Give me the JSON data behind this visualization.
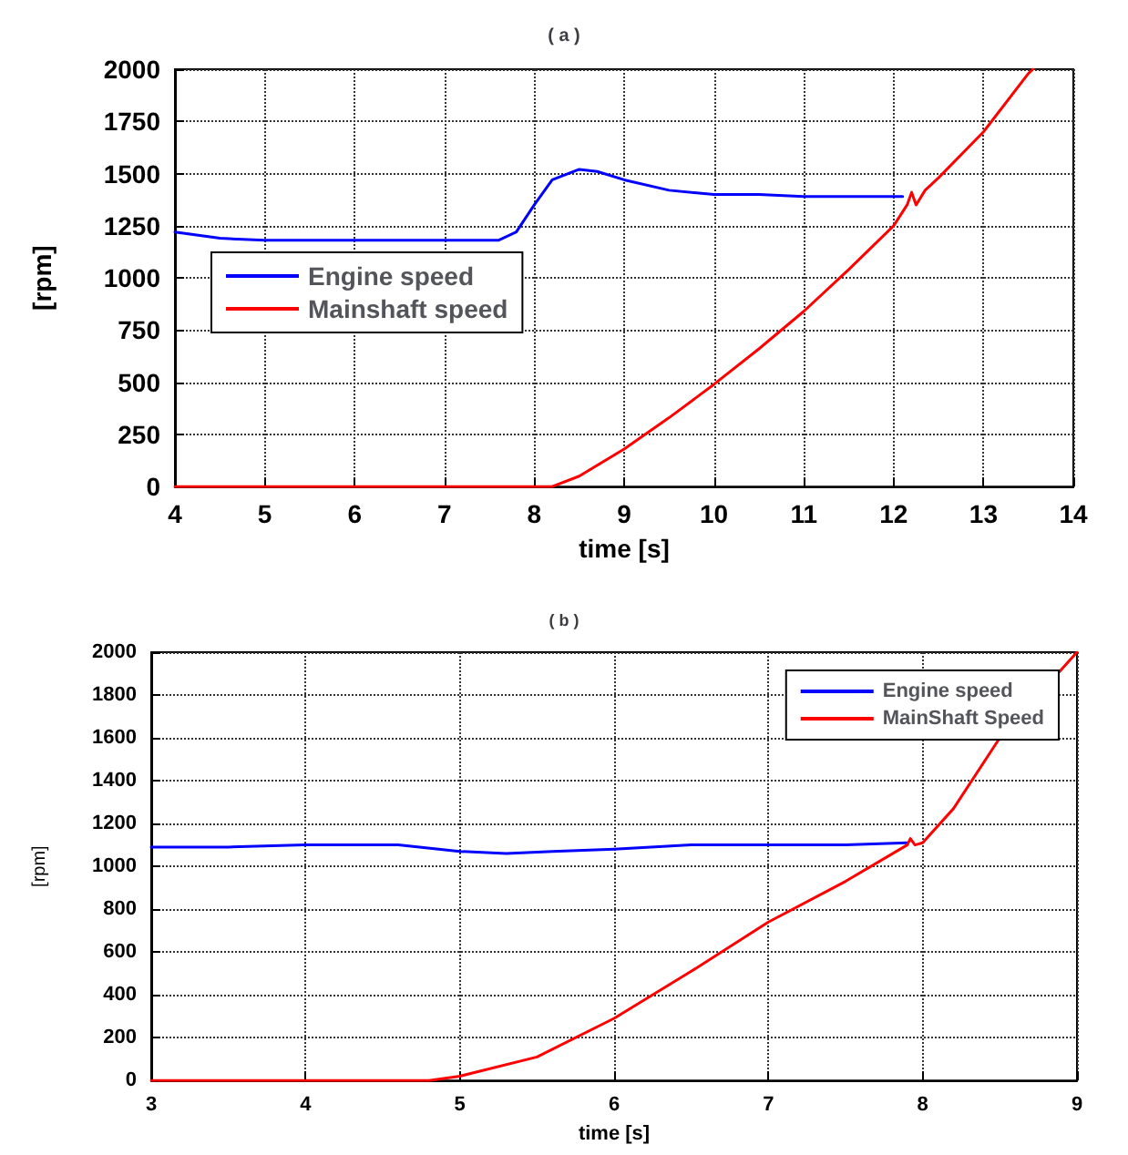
{
  "chart_data": [
    {
      "type": "line",
      "title": "( a )",
      "xlabel": "time [s]",
      "ylabel": "[rpm]",
      "xlim": [
        4,
        14
      ],
      "xticks": [
        4,
        5,
        6,
        7,
        8,
        9,
        10,
        11,
        12,
        13,
        14
      ],
      "ylim": [
        0,
        2000
      ],
      "yticks": [
        0,
        250,
        500,
        750,
        1000,
        1250,
        1500,
        1750,
        2000
      ],
      "grid": true,
      "legend": "left",
      "marker": "none",
      "line_style": "solid",
      "series": [
        {
          "name": "Engine speed",
          "color": "#0000ff",
          "x": [
            4,
            4.5,
            5,
            6,
            7,
            7.6,
            7.8,
            8,
            8.2,
            8.5,
            8.7,
            9,
            9.5,
            10,
            10.5,
            11,
            11.5,
            12,
            12.1
          ],
          "values": [
            1220,
            1190,
            1180,
            1180,
            1180,
            1180,
            1220,
            1350,
            1470,
            1520,
            1510,
            1470,
            1420,
            1400,
            1400,
            1390,
            1390,
            1390,
            1390
          ]
        },
        {
          "name": "Mainshaft speed",
          "color": "#ff0000",
          "x": [
            4,
            6,
            8.2,
            8.5,
            9,
            9.5,
            10,
            10.5,
            11,
            11.5,
            12,
            12.15,
            12.2,
            12.25,
            12.35,
            12.5,
            13,
            13.5,
            13.55
          ],
          "values": [
            0,
            0,
            0,
            50,
            180,
            330,
            490,
            660,
            840,
            1040,
            1250,
            1350,
            1410,
            1350,
            1420,
            1480,
            1700,
            1980,
            2000
          ]
        }
      ]
    },
    {
      "type": "line",
      "title": "( b )",
      "xlabel": "time [s]",
      "ylabel": "[rpm]",
      "xlim": [
        3,
        9
      ],
      "xticks": [
        3,
        4,
        5,
        6,
        7,
        8,
        9
      ],
      "ylim": [
        0,
        2000
      ],
      "yticks": [
        0,
        200,
        400,
        600,
        800,
        1000,
        1200,
        1400,
        1600,
        1800,
        2000
      ],
      "grid": true,
      "legend": "top right",
      "marker": "none",
      "line_style": "solid",
      "series": [
        {
          "name": "Engine speed",
          "color": "#0000ff",
          "x": [
            3,
            3.5,
            4,
            4.6,
            5,
            5.3,
            5.6,
            6,
            6.5,
            7,
            7.5,
            7.9
          ],
          "values": [
            1090,
            1090,
            1100,
            1100,
            1070,
            1060,
            1070,
            1080,
            1100,
            1100,
            1100,
            1110
          ]
        },
        {
          "name": "MainShaft Speed",
          "color": "#ff0000",
          "x": [
            3,
            4,
            4.8,
            5,
            5.5,
            6,
            6.5,
            7,
            7.5,
            7.9,
            7.92,
            7.95,
            8,
            8.2,
            8.5,
            9
          ],
          "values": [
            0,
            0,
            0,
            20,
            110,
            290,
            510,
            740,
            930,
            1100,
            1130,
            1100,
            1110,
            1270,
            1600,
            2000
          ]
        }
      ]
    }
  ]
}
